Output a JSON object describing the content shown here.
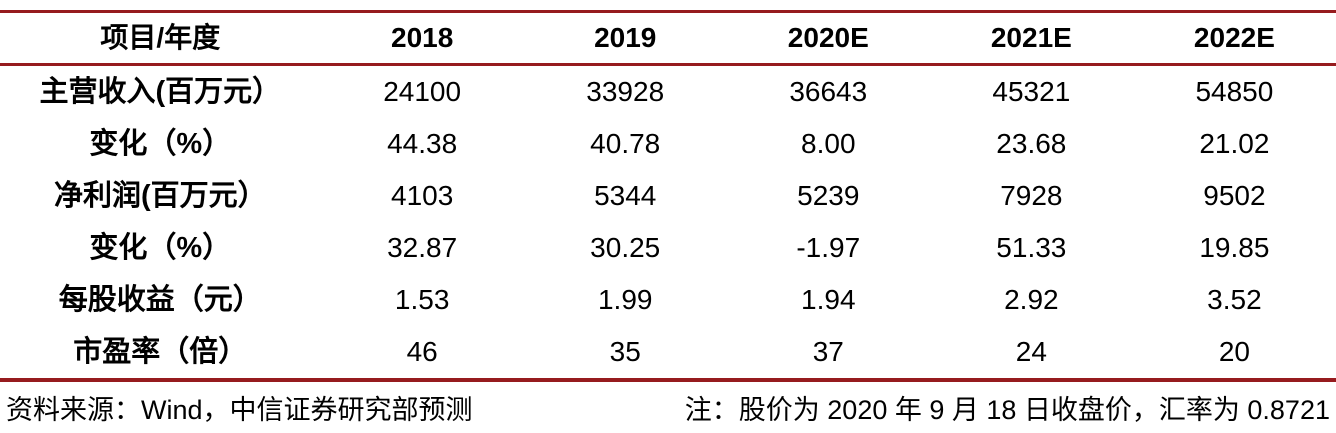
{
  "colors": {
    "rule": "#961b1e",
    "text": "#000000",
    "background": "#ffffff"
  },
  "table": {
    "columns": [
      "项目/年度",
      "2018",
      "2019",
      "2020E",
      "2021E",
      "2022E"
    ],
    "rows": [
      {
        "label": "主营收入(百万元）",
        "values": [
          "24100",
          "33928",
          "36643",
          "45321",
          "54850"
        ]
      },
      {
        "label": "变化（%）",
        "values": [
          "44.38",
          "40.78",
          "8.00",
          "23.68",
          "21.02"
        ]
      },
      {
        "label": "净利润(百万元）",
        "values": [
          "4103",
          "5344",
          "5239",
          "7928",
          "9502"
        ]
      },
      {
        "label": "变化（%）",
        "values": [
          "32.87",
          "30.25",
          "-1.97",
          "51.33",
          "19.85"
        ]
      },
      {
        "label": "每股收益（元）",
        "values": [
          "1.53",
          "1.99",
          "1.94",
          "2.92",
          "3.52"
        ]
      },
      {
        "label": "市盈率（倍）",
        "values": [
          "46",
          "35",
          "37",
          "24",
          "20"
        ]
      }
    ]
  },
  "footer": {
    "source": "资料来源：Wind，中信证券研究部预测",
    "note": "注：股价为 2020 年 9 月 18 日收盘价，汇率为 0.8721"
  },
  "chart_data": {
    "type": "table",
    "title": "",
    "columns": [
      "项目/年度",
      "2018",
      "2019",
      "2020E",
      "2021E",
      "2022E"
    ],
    "rows": [
      [
        "主营收入(百万元）",
        24100,
        33928,
        36643,
        45321,
        54850
      ],
      [
        "变化（%）",
        44.38,
        40.78,
        8.0,
        23.68,
        21.02
      ],
      [
        "净利润(百万元）",
        4103,
        5344,
        5239,
        7928,
        9502
      ],
      [
        "变化（%）",
        32.87,
        30.25,
        -1.97,
        51.33,
        19.85
      ],
      [
        "每股收益（元）",
        1.53,
        1.99,
        1.94,
        2.92,
        3.52
      ],
      [
        "市盈率（倍）",
        46,
        35,
        37,
        24,
        20
      ]
    ]
  }
}
